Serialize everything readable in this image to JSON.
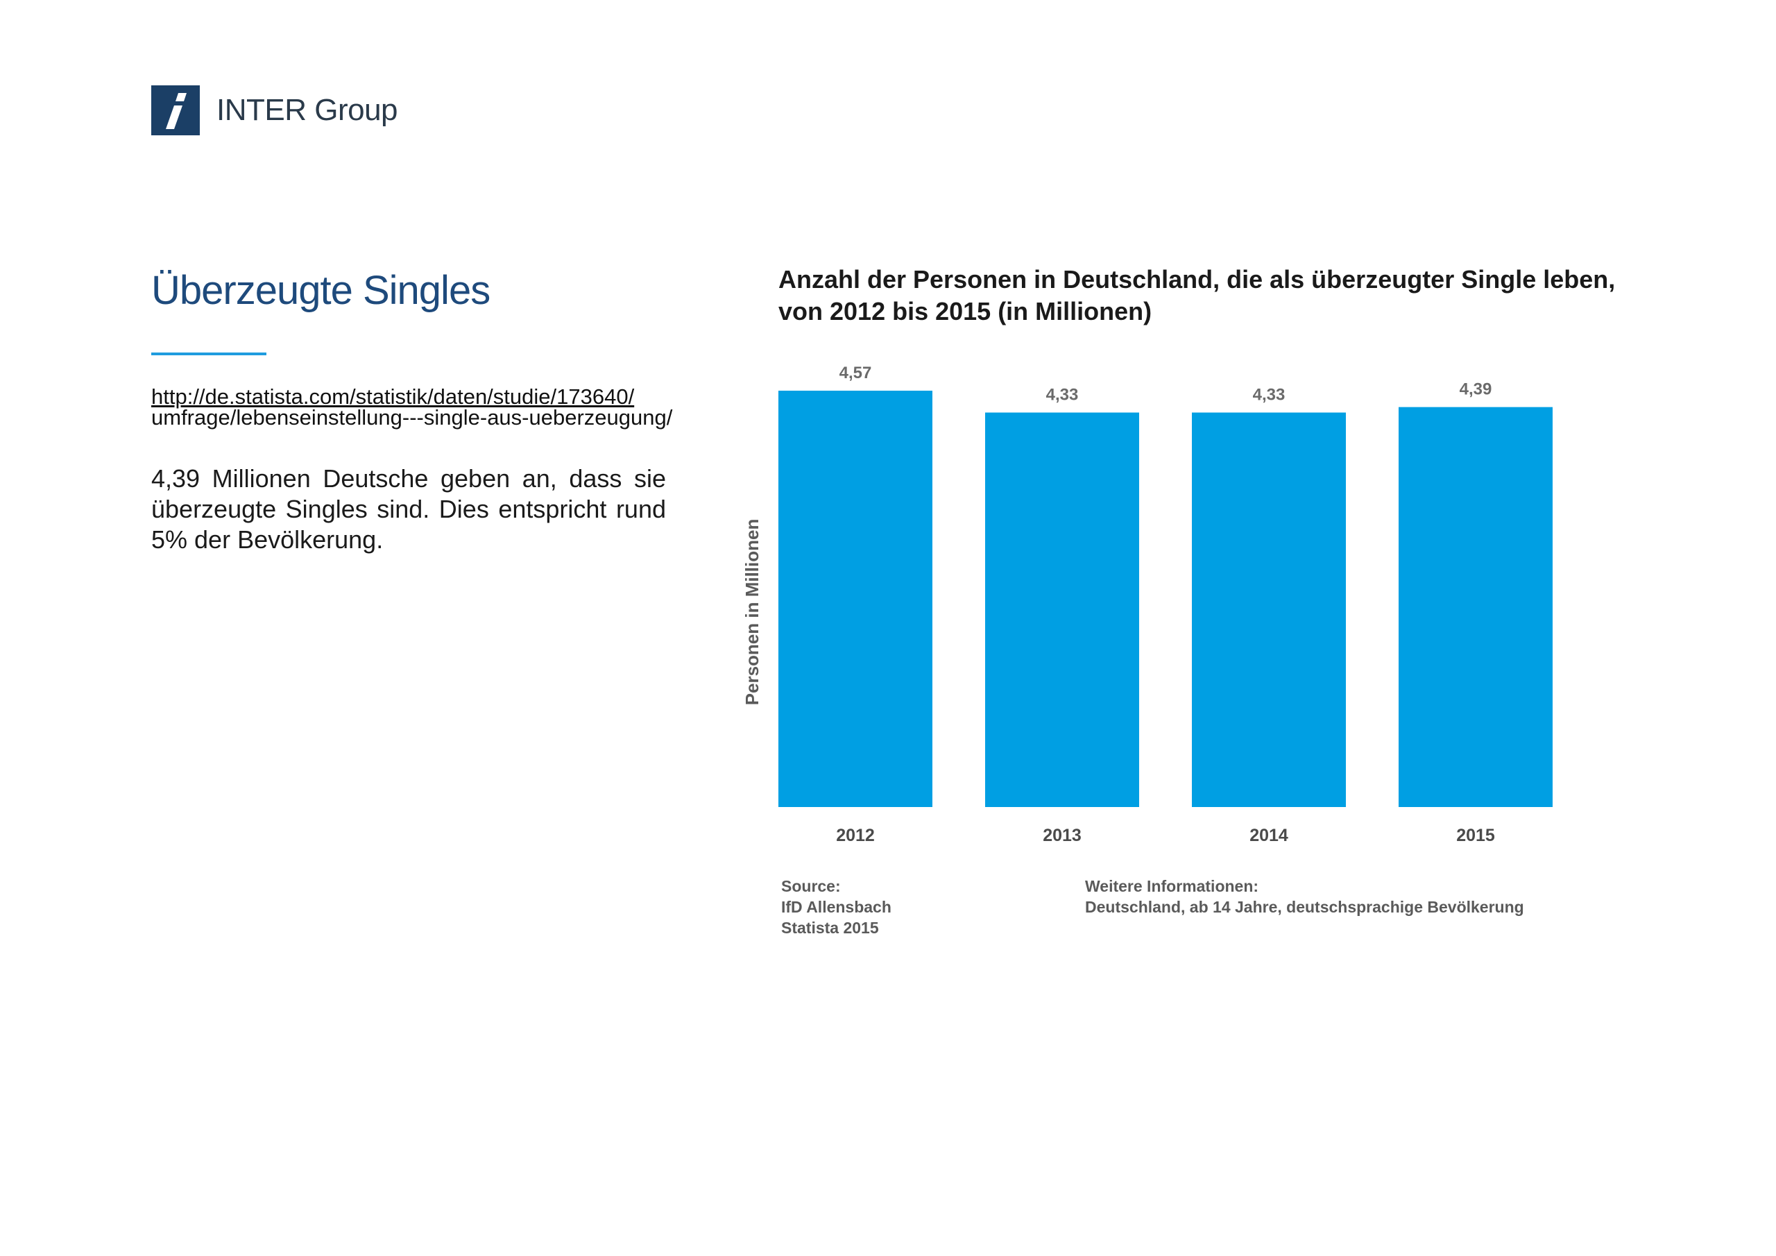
{
  "brand": {
    "name": "INTER Group",
    "mark_letter": "i",
    "color": "#1b3f66"
  },
  "page_title": "Überzeugte Singles",
  "source_link": {
    "line1": "http://de.statista.com/statistik/daten/studie/173640/",
    "line2": "umfrage/lebenseinstellung---single-aus-ueberzeugung/"
  },
  "body_text": "4,39 Millionen Deutsche geben an, dass sie überzeugte Singles sind. Dies entspricht rund 5% der Bevölkerung.",
  "chart_data": {
    "type": "bar",
    "title": "Anzahl der Personen in Deutschland, die als überzeugter Single leben, von 2012 bis 2015 (in Millionen)",
    "xlabel": "",
    "ylabel": "Personen in Millionen",
    "categories": [
      "2012",
      "2013",
      "2014",
      "2015"
    ],
    "values": [
      4.57,
      4.33,
      4.33,
      4.39
    ],
    "value_labels": [
      "4,57",
      "4,33",
      "4,33",
      "4,39"
    ],
    "bar_color": "#009fe3",
    "grid": false,
    "legend": "none"
  },
  "footer": {
    "source_label": "Source:",
    "source_lines": [
      "IfD Allensbach",
      "Statista 2015"
    ],
    "info_label": "Weitere Informationen:",
    "info_text": "Deutschland, ab 14 Jahre, deutschsprachige Bevölkerung"
  }
}
